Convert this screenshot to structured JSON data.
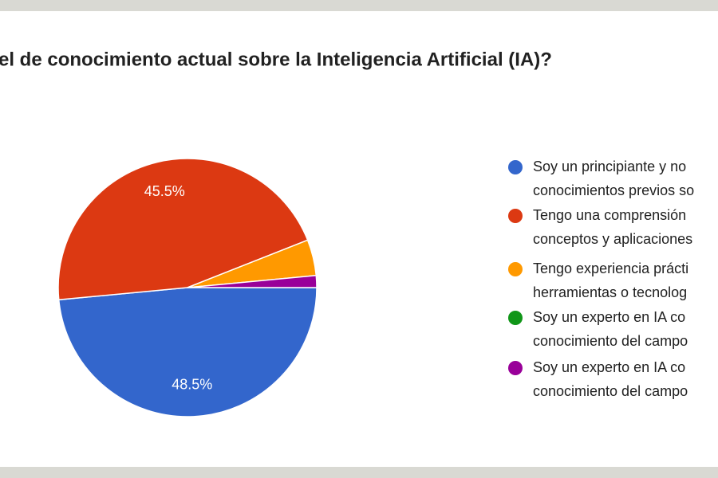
{
  "chart_data": {
    "type": "pie",
    "title": "el de conocimiento actual sobre la Inteligencia Artificial (IA)?",
    "categories": [
      [
        "Soy un principiante y no",
        "conocimientos previos so"
      ],
      [
        "Tengo una comprensión",
        "conceptos y aplicaciones"
      ],
      [
        "Tengo experiencia prácti",
        "herramientas o tecnolog"
      ],
      [
        "Soy un experto en IA co",
        "conocimiento del campo"
      ],
      [
        "Soy un experto en IA co",
        "conocimiento del campo"
      ]
    ],
    "values": [
      48.5,
      45.5,
      4.5,
      0,
      1.5
    ],
    "value_labels": [
      "48.5%",
      "45.5%",
      null,
      null,
      null
    ],
    "colors": [
      "#3366cc",
      "#dc3912",
      "#ff9900",
      "#109618",
      "#990099"
    ],
    "legend": "right"
  }
}
